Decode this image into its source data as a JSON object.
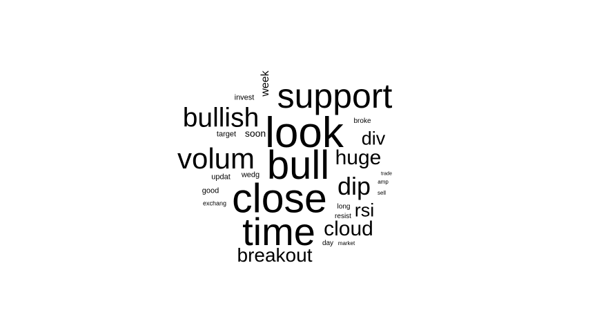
{
  "word_cloud": {
    "color": "#000000",
    "background": "#ffffff",
    "words": [
      {
        "text": "look",
        "vertical": false
      },
      {
        "text": "bull",
        "vertical": false
      },
      {
        "text": "close",
        "vertical": false
      },
      {
        "text": "support",
        "vertical": false
      },
      {
        "text": "time",
        "vertical": false
      },
      {
        "text": "volum",
        "vertical": false
      },
      {
        "text": "bullish",
        "vertical": false
      },
      {
        "text": "dip",
        "vertical": false
      },
      {
        "text": "huge",
        "vertical": false
      },
      {
        "text": "cloud",
        "vertical": false
      },
      {
        "text": "breakout",
        "vertical": false
      },
      {
        "text": "rsi",
        "vertical": false
      },
      {
        "text": "div",
        "vertical": false
      },
      {
        "text": "week",
        "vertical": true
      },
      {
        "text": "soon",
        "vertical": false
      },
      {
        "text": "invest",
        "vertical": false
      },
      {
        "text": "target",
        "vertical": false
      },
      {
        "text": "broke",
        "vertical": false
      },
      {
        "text": "updat",
        "vertical": false
      },
      {
        "text": "wedg",
        "vertical": false
      },
      {
        "text": "good",
        "vertical": false
      },
      {
        "text": "exchang",
        "vertical": false
      },
      {
        "text": "long",
        "vertical": false
      },
      {
        "text": "resist",
        "vertical": false
      },
      {
        "text": "day",
        "vertical": false
      },
      {
        "text": "market",
        "vertical": false
      },
      {
        "text": "amp",
        "vertical": false
      },
      {
        "text": "sell",
        "vertical": false
      },
      {
        "text": "trade",
        "vertical": false
      }
    ]
  }
}
